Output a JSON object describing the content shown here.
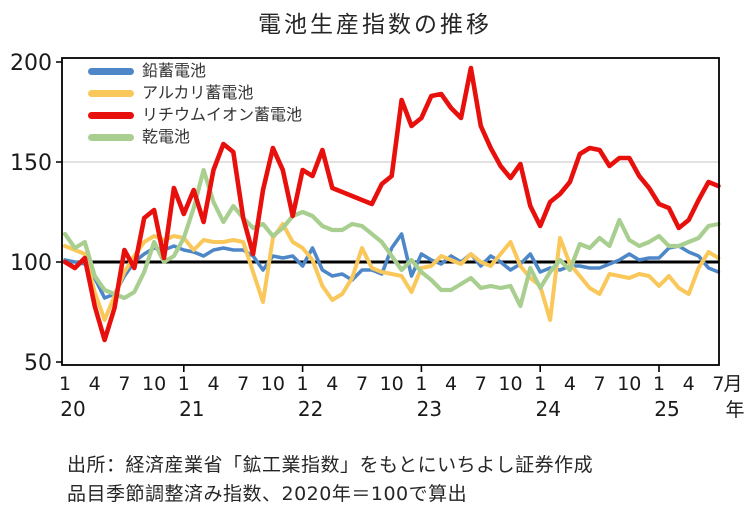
{
  "title": "電池生産指数の推移",
  "legend": [
    {
      "label": "鉛蓄電池"
    },
    {
      "label": "アルカリ蓄電池"
    },
    {
      "label": "リチウムイオン蓄電池"
    },
    {
      "label": "乾電池"
    }
  ],
  "chart_data": {
    "type": "line",
    "title": "電池生産指数の推移",
    "x_start": "2020-01",
    "x_end": "2025-07",
    "x_frequency": "monthly",
    "n_points": 67,
    "x_axis": {
      "month_tick_labels": [
        1,
        4,
        7,
        10
      ],
      "year_labels": [
        "20",
        "21",
        "22",
        "23",
        "24",
        "25"
      ],
      "month_unit_label": "月",
      "year_unit_label": "年"
    },
    "y_axis": {
      "ticks": [
        50,
        100,
        150,
        200
      ],
      "ylim": [
        48,
        202
      ],
      "baseline_value": 100,
      "gridline_value": 150,
      "gridline_color": "#d8d8d8",
      "baseline_color": "#000000"
    },
    "legend_position": "top-left-inside",
    "grid": "single-line-at-150",
    "series": [
      {
        "name": "鉛蓄電池",
        "color": "#4E87C8",
        "values": [
          101,
          100,
          99,
          92,
          82,
          84,
          93,
          100,
          104,
          107,
          106,
          108,
          106,
          105,
          103,
          106,
          107,
          106,
          106,
          103,
          96,
          103,
          102,
          103,
          98,
          107,
          96,
          93,
          94,
          91,
          96,
          96,
          94,
          107,
          114,
          93,
          104,
          101,
          99,
          103,
          100,
          104,
          98,
          103,
          100,
          96,
          99,
          104,
          95,
          97,
          96,
          98,
          98,
          97,
          97,
          99,
          101,
          104,
          101,
          102,
          102,
          107,
          108,
          105,
          103,
          97,
          95
        ]
      },
      {
        "name": "アルカリ蓄電池",
        "color": "#FAC85A",
        "values": [
          108,
          106,
          104,
          85,
          71,
          83,
          95,
          103,
          110,
          113,
          111,
          113,
          112,
          106,
          111,
          110,
          110,
          111,
          110,
          95,
          80,
          112,
          119,
          110,
          107,
          101,
          88,
          81,
          84,
          92,
          107,
          97,
          95,
          94,
          93,
          85,
          97,
          98,
          103,
          101,
          99,
          104,
          100,
          98,
          104,
          110,
          98,
          92,
          88,
          71,
          112,
          99,
          93,
          87,
          84,
          94,
          93,
          92,
          94,
          93,
          88,
          93,
          87,
          84,
          97,
          105,
          102
        ]
      },
      {
        "name": "乾電池",
        "color": "#A8CF90",
        "values": [
          114,
          107,
          110,
          93,
          86,
          84,
          82,
          85,
          95,
          110,
          100,
          103,
          112,
          127,
          146,
          130,
          120,
          128,
          122,
          117,
          119,
          113,
          117,
          123,
          125,
          123,
          118,
          116,
          116,
          119,
          118,
          114,
          110,
          103,
          96,
          101,
          95,
          91,
          86,
          86,
          89,
          92,
          87,
          88,
          87,
          88,
          78,
          97,
          87,
          95,
          101,
          96,
          109,
          107,
          112,
          108,
          121,
          111,
          108,
          110,
          113,
          108,
          108,
          110,
          112,
          118,
          119
        ]
      },
      {
        "name": "リチウムイオン蓄電池",
        "color": "#E8100C",
        "values": [
          100,
          97,
          102,
          78,
          61,
          77,
          106,
          97,
          122,
          126,
          102,
          137,
          124,
          136,
          120,
          146,
          159,
          155,
          122,
          104,
          136,
          157,
          146,
          123,
          146,
          143,
          156,
          137,
          135,
          133,
          131,
          129,
          139,
          143,
          181,
          168,
          172,
          183,
          184,
          177,
          172,
          197,
          168,
          157,
          148,
          142,
          149,
          128,
          118,
          130,
          134,
          140,
          154,
          157,
          156,
          148,
          152,
          152,
          143,
          137,
          129,
          127,
          117,
          121,
          131,
          140,
          138
        ]
      }
    ]
  },
  "source": {
    "line1": "出所：経済産業省「鉱工業指数」をもとにいちよし証券作成",
    "line2": "品目季節調整済み指数、2020年＝100で算出"
  }
}
